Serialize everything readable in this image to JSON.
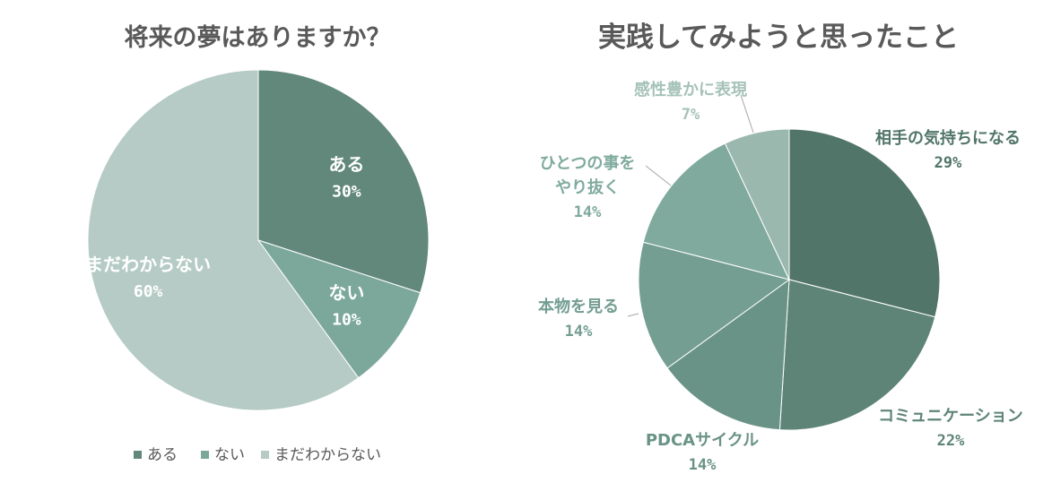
{
  "chart_data": [
    {
      "type": "pie",
      "title": "将来の夢はありますか？",
      "slices": [
        {
          "label": "ある",
          "value": 30,
          "value_label": "30%",
          "color": "#62887c"
        },
        {
          "label": "ない",
          "value": 10,
          "value_label": "10%",
          "color": "#7ca89c"
        },
        {
          "label": "まだわからない",
          "value": 60,
          "value_label": "60%",
          "color": "#b6cbc5"
        }
      ],
      "legend": {
        "position": "bottom",
        "items": [
          "ある",
          "ない",
          "まだわからない"
        ]
      }
    },
    {
      "type": "pie",
      "title": "実践してみようと思ったこと",
      "slices": [
        {
          "label": "相手の気持ちになる",
          "value": 29,
          "value_label": "29%",
          "color": "#52756a"
        },
        {
          "label": "コミュニケーション",
          "value": 22,
          "value_label": "22%",
          "color": "#5e8478"
        },
        {
          "label": "PDCAサイクル",
          "value": 14,
          "value_label": "14%",
          "color": "#6a9387"
        },
        {
          "label": "本物を見る",
          "value": 14,
          "value_label": "14%",
          "color": "#749e92"
        },
        {
          "label": "ひとつの事をやり抜く",
          "value": 14,
          "value_label": "14%",
          "color": "#80aa9e"
        },
        {
          "label": "感性豊かに表現",
          "value": 7,
          "value_label": "7%",
          "color": "#9ab8ae"
        }
      ]
    }
  ]
}
